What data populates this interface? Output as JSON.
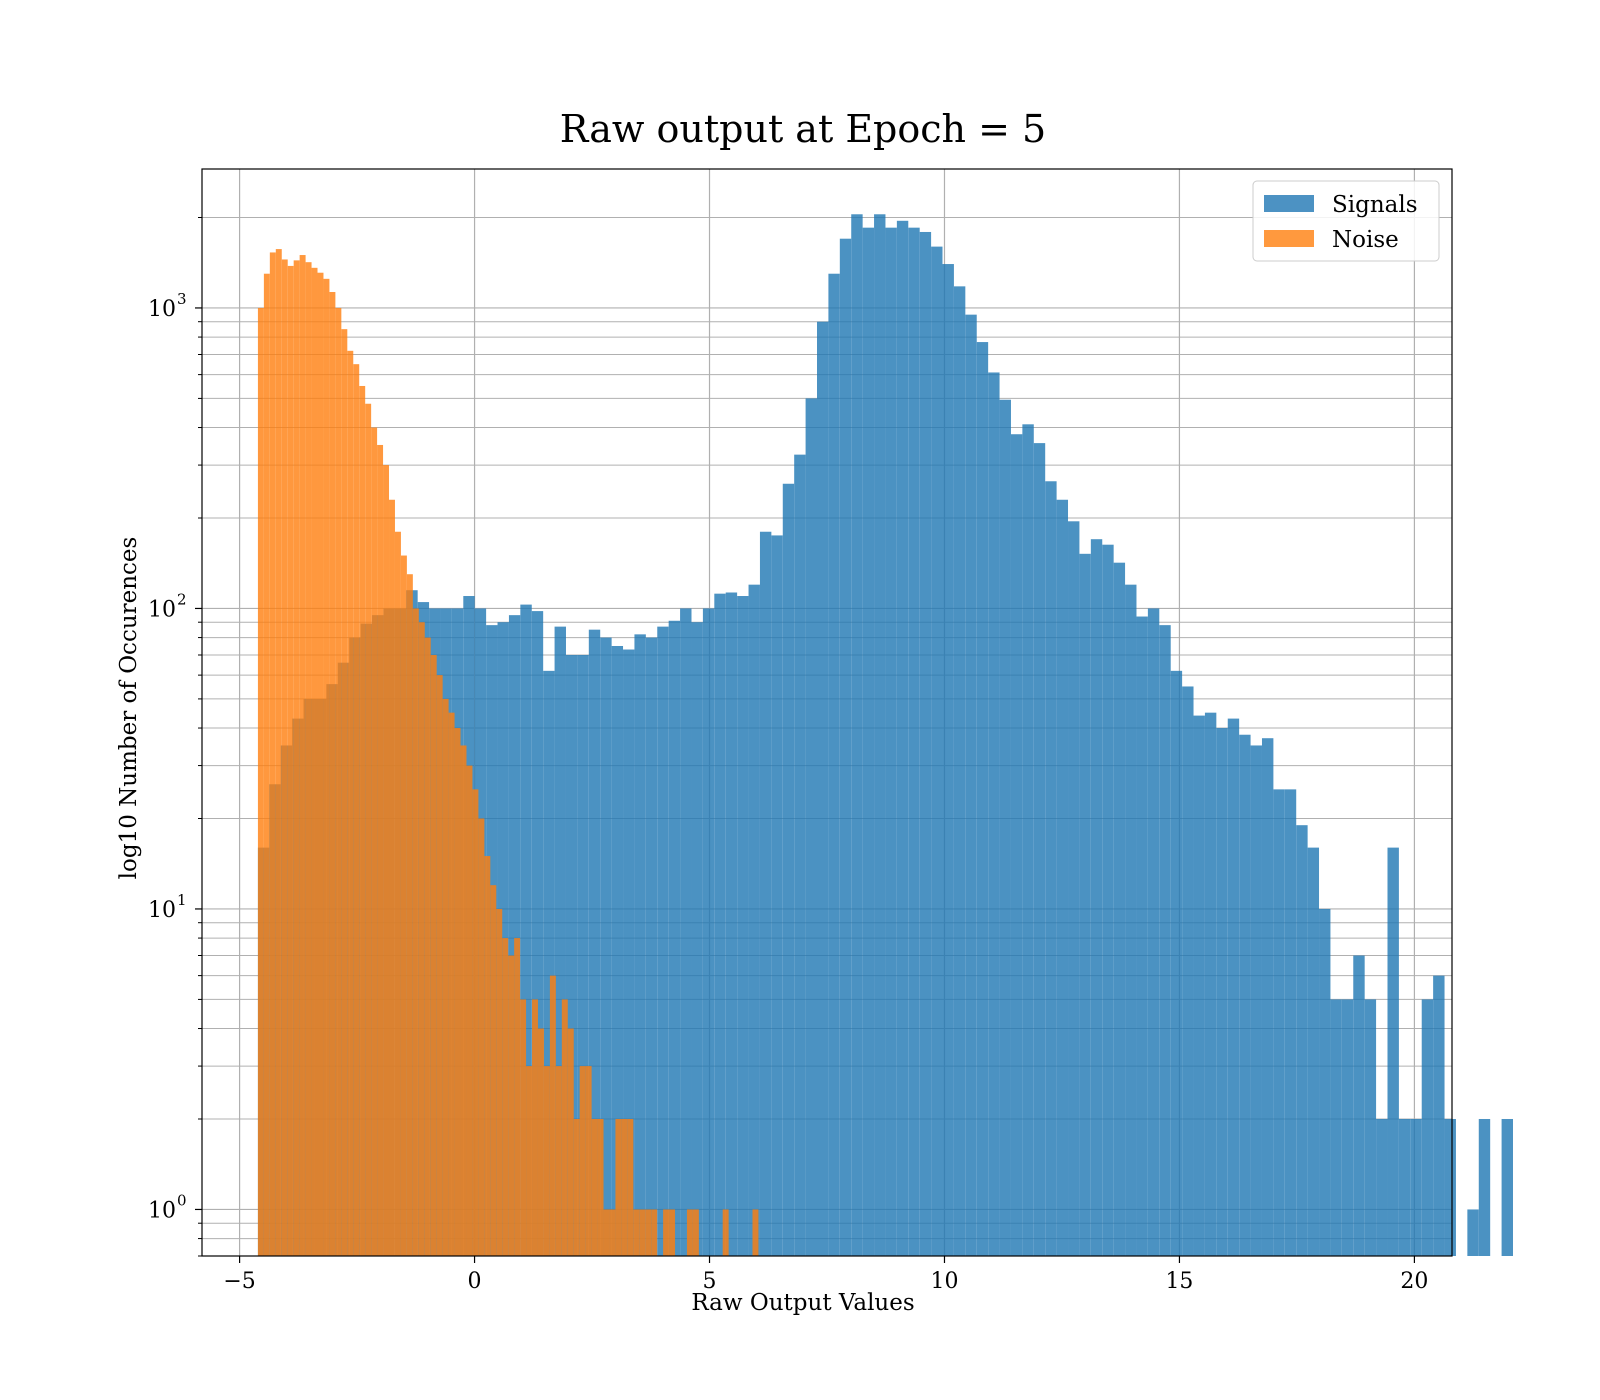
{
  "chart_data": {
    "type": "bar",
    "title": "Raw output at Epoch = 5",
    "xlabel": "Raw Output Values",
    "ylabel": "log10 Number of Occurences",
    "xlim": [
      -5.8,
      20.8
    ],
    "ylim": [
      0.7,
      2900
    ],
    "yscale": "log",
    "grid": true,
    "legend_position": "top-right",
    "xticks": [
      {
        "value": -5,
        "label": "−5"
      },
      {
        "value": 0,
        "label": "0"
      },
      {
        "value": 5,
        "label": "5"
      },
      {
        "value": 10,
        "label": "10"
      },
      {
        "value": 15,
        "label": "15"
      },
      {
        "value": 20,
        "label": "20"
      }
    ],
    "yticks": [
      {
        "value": 1,
        "label": "10",
        "exp": "0"
      },
      {
        "value": 10,
        "label": "10",
        "exp": "1"
      },
      {
        "value": 100,
        "label": "10",
        "exp": "2"
      },
      {
        "value": 1000,
        "label": "10",
        "exp": "3"
      }
    ],
    "series": [
      {
        "name": "Signals",
        "color": "#1f77b4",
        "bin_start": -4.61,
        "bin_width": 0.2428,
        "values": [
          16,
          26,
          35,
          43,
          50,
          50,
          56,
          66,
          80,
          89,
          95,
          100,
          100,
          115,
          105,
          100,
          100,
          100,
          110,
          100,
          88,
          90,
          95,
          103,
          98,
          62,
          87,
          70,
          70,
          85,
          80,
          75,
          73,
          82,
          80,
          87,
          91,
          100,
          90,
          100,
          112,
          113,
          110,
          120,
          180,
          175,
          260,
          325,
          500,
          900,
          1300,
          1700,
          2050,
          1850,
          2050,
          1850,
          1950,
          1850,
          1790,
          1600,
          1400,
          1180,
          950,
          770,
          610,
          495,
          380,
          410,
          355,
          265,
          230,
          195,
          152,
          170,
          163,
          142,
          120,
          94,
          100,
          88,
          62,
          55,
          44,
          45,
          40,
          43,
          38,
          35,
          37,
          25,
          25,
          19,
          16,
          10,
          5,
          5,
          7,
          5,
          2,
          16,
          2,
          2,
          5,
          6,
          2,
          0,
          1,
          2,
          0,
          2
        ]
      },
      {
        "name": "Noise",
        "color": "#ff7f0e",
        "bin_start": -4.61,
        "bin_width": 0.1268,
        "values": [
          1000,
          1300,
          1530,
          1570,
          1450,
          1380,
          1440,
          1500,
          1420,
          1360,
          1310,
          1250,
          1130,
          1000,
          850,
          720,
          650,
          550,
          480,
          400,
          350,
          300,
          230,
          180,
          150,
          130,
          100,
          90,
          80,
          70,
          60,
          50,
          45,
          40,
          35,
          30,
          25,
          20,
          15,
          12,
          10,
          8,
          7,
          8,
          5,
          3,
          5,
          4,
          3,
          6,
          3,
          5,
          4,
          2,
          3,
          3,
          2,
          2,
          1,
          1,
          2,
          2,
          2,
          1,
          1,
          1,
          1,
          0,
          1,
          1,
          0,
          0,
          1,
          1,
          0,
          0,
          0,
          0,
          1,
          0,
          0,
          0,
          0,
          1
        ]
      }
    ]
  }
}
